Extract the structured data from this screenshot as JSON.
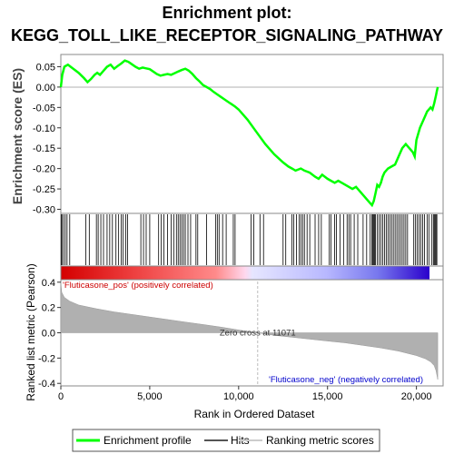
{
  "title_line1": "Enrichment plot:",
  "title_line2": "KEGG_TOLL_LIKE_RECEPTOR_SIGNALING_PATHWAY",
  "colors": {
    "enrichment": "#00ff00",
    "hits": "#000000",
    "metric_fill": "#b0b0b0",
    "pos_text": "#cc0000",
    "neg_text": "#0000cc",
    "zero_line": "#bbbbbb"
  },
  "chart_data": {
    "type": "line",
    "xlabel": "Rank in Ordered Dataset",
    "x_ticks": [
      0,
      5000,
      10000,
      15000,
      20000
    ],
    "x_tick_labels": [
      "0",
      "5,000",
      "10,000",
      "15,000",
      "20,000"
    ],
    "xlim": [
      0,
      21500
    ],
    "total_genes": 21200,
    "enrichment": {
      "ylabel": "Enrichment score (ES)",
      "ylim": [
        -0.31,
        0.08
      ],
      "y_ticks": [
        0.05,
        0.0,
        -0.05,
        -0.1,
        -0.15,
        -0.2,
        -0.25,
        -0.3
      ],
      "y_tick_labels": [
        "0.05",
        "0.00",
        "-0.05",
        "-0.10",
        "-0.15",
        "-0.20",
        "-0.25",
        "-0.30"
      ],
      "series": [
        {
          "x": [
            0,
            80,
            200,
            400,
            700,
            1000,
            1300,
            1500,
            1700,
            1900,
            2050,
            2200,
            2400,
            2600,
            2800,
            3000,
            3200,
            3400,
            3600,
            3800,
            4000,
            4200,
            4400,
            4600,
            4800,
            5000,
            5200,
            5400,
            5600,
            5800,
            6000,
            6200,
            6400,
            6600,
            6800,
            7000,
            7200,
            7400,
            7600,
            7800,
            8000,
            8200,
            8400,
            8600,
            8800,
            9000,
            9200,
            9400,
            9600,
            9800,
            10000,
            10500,
            11000,
            11500,
            12000,
            12500,
            12800,
            13000,
            13200,
            13500,
            13700,
            14000,
            14300,
            14500,
            14700,
            15000,
            15200,
            15400,
            15600,
            15800,
            16000,
            16200,
            16400,
            16600,
            16800,
            17000,
            17200,
            17400,
            17500,
            17600,
            17700,
            17800,
            17900,
            18000,
            18100,
            18200,
            18400,
            18600,
            18800,
            19000,
            19200,
            19400,
            19600,
            19800,
            19900,
            20000,
            20200,
            20400,
            20600,
            20800,
            20900,
            21000,
            21100,
            21150,
            21200
          ],
          "y": [
            0.0,
            0.03,
            0.05,
            0.055,
            0.045,
            0.035,
            0.022,
            0.012,
            0.02,
            0.03,
            0.035,
            0.03,
            0.04,
            0.05,
            0.055,
            0.045,
            0.052,
            0.058,
            0.065,
            0.062,
            0.056,
            0.05,
            0.045,
            0.048,
            0.046,
            0.044,
            0.038,
            0.032,
            0.028,
            0.03,
            0.032,
            0.03,
            0.034,
            0.038,
            0.042,
            0.045,
            0.04,
            0.032,
            0.022,
            0.014,
            0.005,
            0.0,
            -0.005,
            -0.012,
            -0.018,
            -0.024,
            -0.03,
            -0.036,
            -0.042,
            -0.048,
            -0.055,
            -0.08,
            -0.11,
            -0.14,
            -0.165,
            -0.185,
            -0.195,
            -0.2,
            -0.205,
            -0.2,
            -0.205,
            -0.21,
            -0.22,
            -0.225,
            -0.215,
            -0.225,
            -0.23,
            -0.235,
            -0.23,
            -0.235,
            -0.24,
            -0.245,
            -0.25,
            -0.245,
            -0.255,
            -0.265,
            -0.275,
            -0.285,
            -0.29,
            -0.28,
            -0.26,
            -0.24,
            -0.245,
            -0.235,
            -0.22,
            -0.21,
            -0.2,
            -0.195,
            -0.19,
            -0.17,
            -0.15,
            -0.14,
            -0.15,
            -0.16,
            -0.17,
            -0.13,
            -0.1,
            -0.08,
            -0.06,
            -0.05,
            -0.055,
            -0.04,
            -0.02,
            -0.01,
            0.0
          ]
        }
      ]
    },
    "hits": [
      20,
      60,
      150,
      250,
      350,
      500,
      1400,
      1600,
      2000,
      2100,
      2250,
      2400,
      2600,
      2750,
      2900,
      3100,
      3250,
      3400,
      3500,
      3650,
      3750,
      4500,
      4650,
      4800,
      5000,
      5500,
      5650,
      5800,
      6000,
      6200,
      6350,
      6500,
      6600,
      6700,
      6800,
      6900,
      7000,
      7150,
      7300,
      7600,
      7700,
      8200,
      8700,
      8800,
      8900,
      9100,
      9300,
      9700,
      9800,
      10700,
      10850,
      11200,
      11400,
      12500,
      12650,
      13000,
      13100,
      13250,
      13400,
      13500,
      13600,
      13700,
      13850,
      14000,
      14300,
      14500,
      14650,
      15100,
      15200,
      15400,
      15500,
      15700,
      15900,
      16100,
      16200,
      16300,
      16500,
      16700,
      17000,
      17200,
      17400,
      17500,
      17550,
      17600,
      17650,
      17700,
      17800,
      17900,
      18000,
      18100,
      18200,
      18300,
      18400,
      18500,
      18600,
      18700,
      18800,
      18900,
      19000,
      19100,
      19200,
      19300,
      19400,
      19500,
      19850,
      19950,
      20050,
      20150,
      20250,
      20350,
      20450,
      20600,
      20700,
      20850,
      20950,
      21000,
      21050,
      21100,
      21150
    ],
    "ranked_metric": {
      "ylabel": "Ranked list metric (Pearson)",
      "ylim": [
        -0.42,
        0.42
      ],
      "y_ticks": [
        0.4,
        0.2,
        0.0,
        -0.2,
        -0.4
      ],
      "y_tick_labels": [
        "0.4",
        "0.2",
        "0.0",
        "-0.2",
        "-0.4"
      ],
      "profile": {
        "rank": [
          0,
          50,
          200,
          500,
          1000,
          2000,
          3000,
          4000,
          5000,
          6000,
          7000,
          8000,
          9000,
          10000,
          11071,
          12000,
          13000,
          14000,
          15000,
          16000,
          17000,
          18000,
          19000,
          20000,
          20500,
          20800,
          21000,
          21100,
          21200
        ],
        "value": [
          0.4,
          0.32,
          0.28,
          0.25,
          0.22,
          0.19,
          0.165,
          0.145,
          0.125,
          0.105,
          0.085,
          0.065,
          0.045,
          0.022,
          0.0,
          -0.02,
          -0.035,
          -0.05,
          -0.065,
          -0.08,
          -0.1,
          -0.12,
          -0.145,
          -0.18,
          -0.205,
          -0.23,
          -0.26,
          -0.3,
          -0.37
        ]
      },
      "zero_cross_label": "Zero cross at 11071",
      "pos_label": "'Fluticasone_pos' (positively correlated)",
      "neg_label": "'Fluticasone_neg' (negatively correlated)"
    },
    "legend": [
      "Enrichment profile",
      "Hits",
      "Ranking metric scores"
    ]
  }
}
